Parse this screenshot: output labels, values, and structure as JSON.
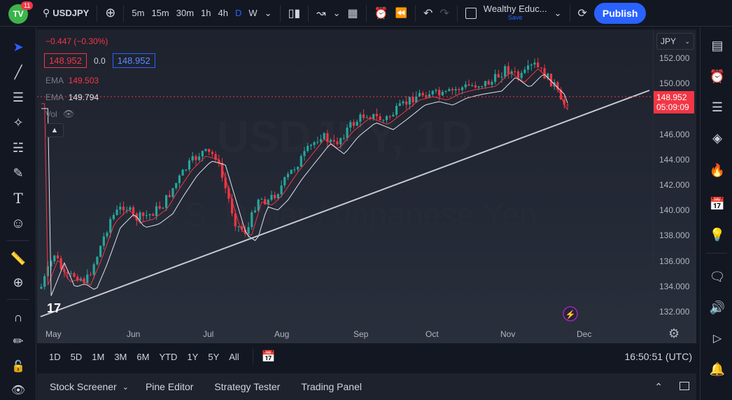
{
  "app": {
    "badge_count": "11",
    "logo_text": "TV"
  },
  "toolbar": {
    "symbol": "USDJPY",
    "intervals": [
      "5m",
      "15m",
      "30m",
      "1h",
      "4h",
      "D",
      "W"
    ],
    "active_interval": "D",
    "layout_name": "Wealthy Educ...",
    "save_label": "Save",
    "publish_label": "Publish"
  },
  "legend": {
    "change": "−0.447 (−0.30%)",
    "bid": "148.952",
    "spread": "0.0",
    "ask": "148.952",
    "ema1_label": "EMA",
    "ema1_value": "149.503",
    "ema2_label": "EMA",
    "ema2_value": "149.794",
    "vol_label": "Vol"
  },
  "price_axis": {
    "currency": "JPY",
    "labels": [
      "152.000",
      "150.000",
      "148.000",
      "146.000",
      "144.000",
      "142.000",
      "140.000",
      "138.000",
      "136.000",
      "134.000",
      "132.000"
    ],
    "last_price": "148.952",
    "countdown": "05:09:09"
  },
  "time_axis": {
    "labels": [
      "May",
      "Jun",
      "Jul",
      "Aug",
      "Sep",
      "Oct",
      "Nov",
      "Dec"
    ]
  },
  "watermark": {
    "line1": "USDJPY, 1D",
    "line2": "U.S. Dollar / Japanese Yen"
  },
  "ranges": {
    "items": [
      "1D",
      "5D",
      "1M",
      "3M",
      "6M",
      "YTD",
      "1Y",
      "5Y",
      "All"
    ],
    "clock": "16:50:51 (UTC)"
  },
  "panels": {
    "items": [
      "Stock Screener",
      "Pine Editor",
      "Strategy Tester",
      "Trading Panel"
    ]
  },
  "colors": {
    "up": "#26a69a",
    "down": "#f23645",
    "accent": "#2962ff",
    "ema_red": "#f23645",
    "ema_white": "#e0e3eb"
  }
}
